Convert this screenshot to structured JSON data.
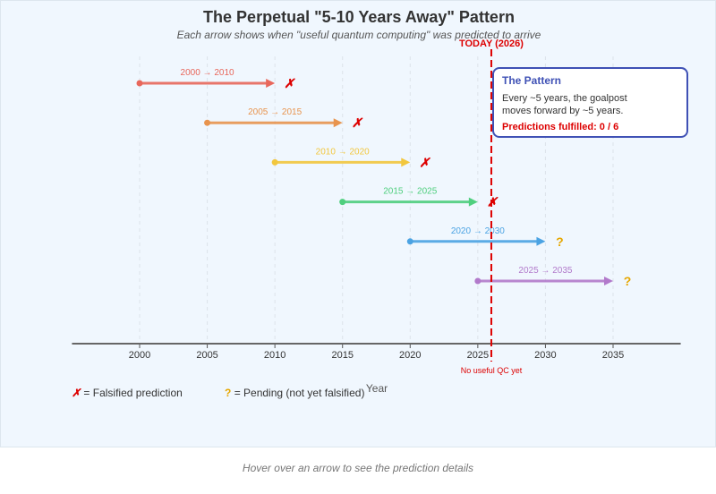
{
  "chart_data": {
    "type": "timeline",
    "title": "The Perpetual \"5-10 Years Away\" Pattern",
    "subtitle": "Each arrow shows when \"useful quantum computing\" was predicted to arrive",
    "xlabel": "Year",
    "xlim": [
      1995,
      2040
    ],
    "xticks": [
      2000,
      2005,
      2010,
      2015,
      2020,
      2025,
      2030,
      2035
    ],
    "grid": true,
    "today": {
      "year": 2026,
      "label": "TODAY (2026)",
      "note": "No useful QC yet",
      "color": "#dd0000"
    },
    "predictions": [
      {
        "made": 2000,
        "target": 2010,
        "label": "2000 → 2010",
        "color": "#e8675b",
        "status": "falsified"
      },
      {
        "made": 2005,
        "target": 2015,
        "label": "2005 → 2015",
        "color": "#e8944e",
        "status": "falsified"
      },
      {
        "made": 2010,
        "target": 2020,
        "label": "2010 → 2020",
        "color": "#f2c73e",
        "status": "falsified"
      },
      {
        "made": 2015,
        "target": 2025,
        "label": "2015 → 2025",
        "color": "#4fcf7e",
        "status": "falsified"
      },
      {
        "made": 2020,
        "target": 2030,
        "label": "2020 → 2030",
        "color": "#4ba3e3",
        "status": "pending"
      },
      {
        "made": 2025,
        "target": 2035,
        "label": "2025 → 2035",
        "color": "#b27acb",
        "status": "pending"
      }
    ],
    "markers": {
      "falsified": "✗",
      "pending": "?",
      "falsified_color": "#dd0000",
      "pending_color": "#e6a700"
    }
  },
  "callout": {
    "title": "The Pattern",
    "body": "Every ~5 years, the goalpost moves forward by ~5 years.",
    "fulfilled": "Predictions fulfilled: 0 / 6"
  },
  "legend": {
    "falsified_symbol": "✗",
    "falsified_label": "= Falsified prediction",
    "pending_symbol": "?",
    "pending_label": "= Pending (not yet falsified)"
  },
  "footer": "Hover over an arrow to see the prediction details"
}
